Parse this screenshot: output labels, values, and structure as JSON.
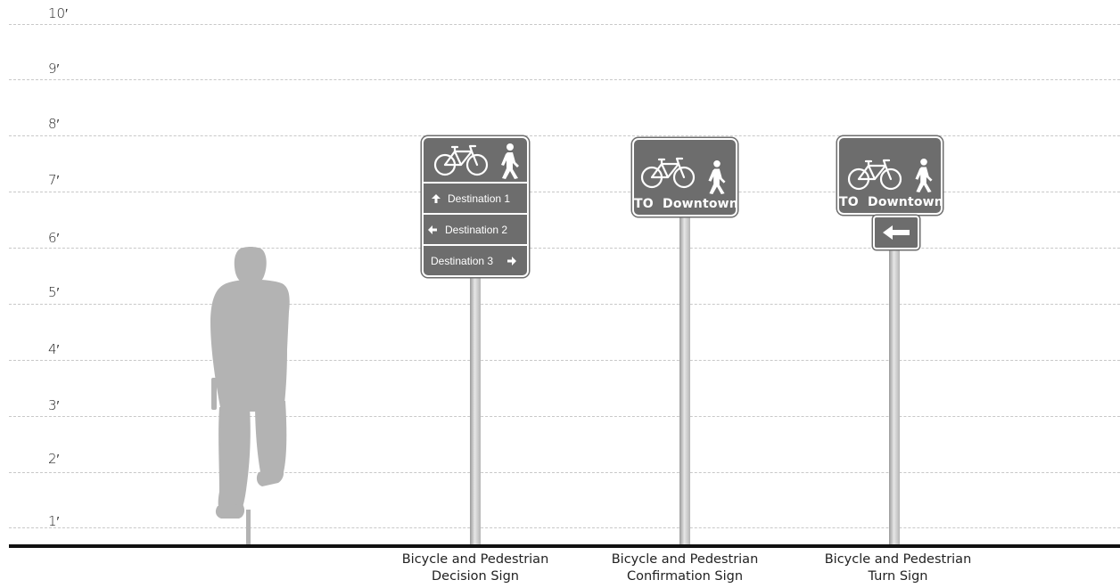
{
  "scale": {
    "ticks": [
      "1′",
      "2′",
      "3′",
      "4′",
      "5′",
      "6′",
      "7′",
      "8′",
      "9′",
      "10′"
    ]
  },
  "decision_sign": {
    "destinations": [
      {
        "label": "Destination 1",
        "arrow": "up-arrow-icon"
      },
      {
        "label": "Destination 2",
        "arrow": "left-arrow-icon"
      },
      {
        "label": "Destination 3",
        "arrow": "right-arrow-icon"
      }
    ],
    "caption_line1": "Bicycle and Pedestrian",
    "caption_line2": "Decision Sign"
  },
  "confirmation_sign": {
    "text": "TO  Downtown",
    "caption_line1": "Bicycle and Pedestrian",
    "caption_line2": "Confirmation Sign"
  },
  "turn_sign": {
    "text": "TO  Downtown",
    "plaque_icon": "left-arrow-icon",
    "caption_line1": "Bicycle and Pedestrian",
    "caption_line2": "Turn Sign"
  },
  "colors": {
    "sign_background": "#6d6d6d",
    "silhouette": "#b3b3b3",
    "ground": "#111111"
  }
}
